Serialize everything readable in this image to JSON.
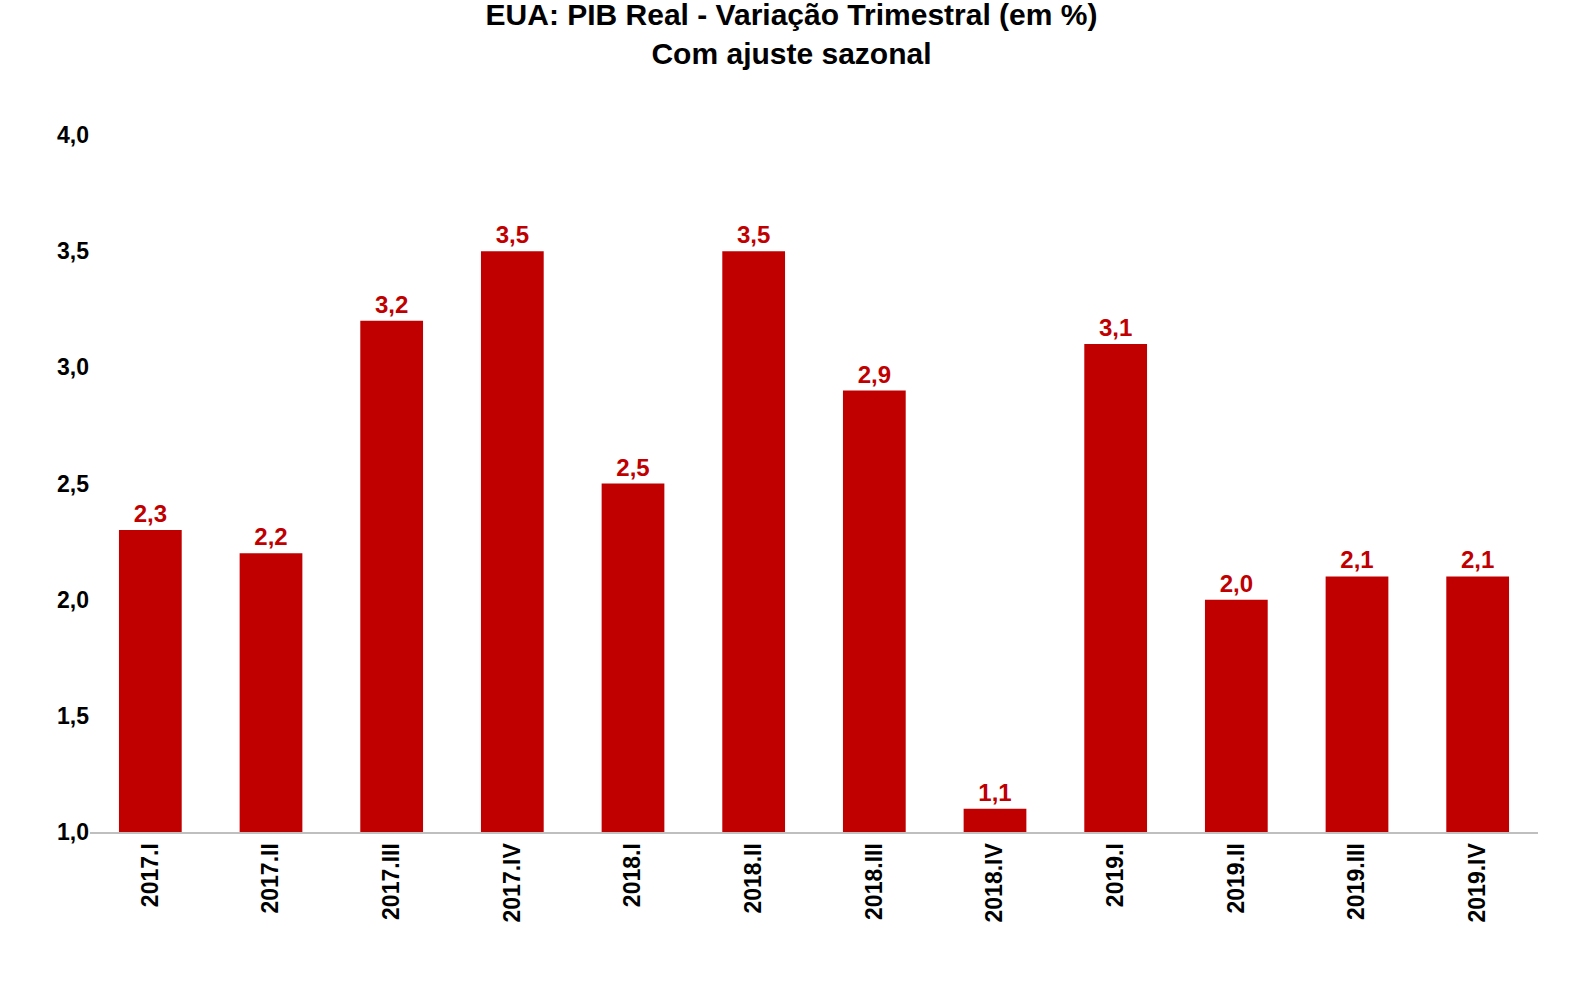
{
  "chart_data": {
    "type": "bar",
    "title": "EUA: PIB Real - Variação Trimestral (em %)",
    "subtitle": "Com ajuste sazonal",
    "categories": [
      "2017.I",
      "2017.II",
      "2017.III",
      "2017.IV",
      "2018.I",
      "2018.II",
      "2018.III",
      "2018.IV",
      "2019.I",
      "2019.II",
      "2019.III",
      "2019.IV"
    ],
    "values": [
      2.3,
      2.2,
      3.2,
      3.5,
      2.5,
      3.5,
      2.9,
      1.1,
      3.1,
      2.0,
      2.1,
      2.1
    ],
    "value_labels": [
      "2,3",
      "2,2",
      "3,2",
      "3,5",
      "2,5",
      "3,5",
      "2,9",
      "1,1",
      "3,1",
      "2,0",
      "2,1",
      "2,1"
    ],
    "color": "#c00000",
    "ylim": [
      1.0,
      4.0
    ],
    "yticks": [
      {
        "value": 1.0,
        "label": "1,0"
      },
      {
        "value": 1.5,
        "label": "1,5"
      },
      {
        "value": 2.0,
        "label": "2,0"
      },
      {
        "value": 2.5,
        "label": "2,5"
      },
      {
        "value": 3.0,
        "label": "3,0"
      },
      {
        "value": 3.5,
        "label": "3,5"
      },
      {
        "value": 4.0,
        "label": "4,0"
      }
    ],
    "grid": false,
    "data_labels": true
  }
}
